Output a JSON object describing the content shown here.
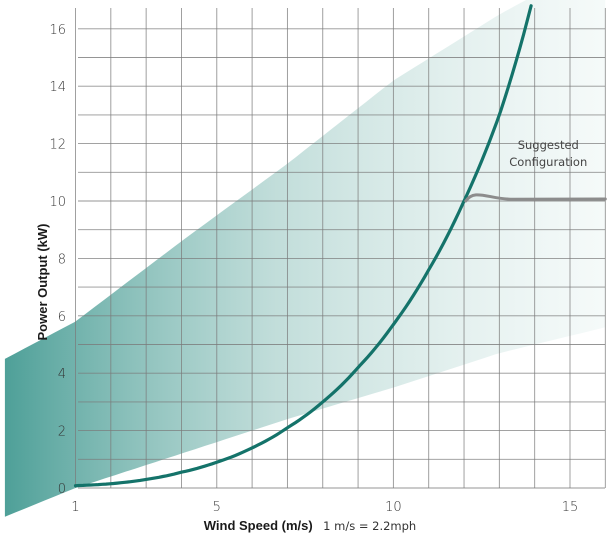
{
  "chart_data": {
    "type": "line",
    "title": "",
    "xlabel": "Wind Speed (m/s)",
    "xlabel_note": "1 m/s = 2.2mph",
    "ylabel": "Power Output (kW)",
    "xlim": [
      1,
      16
    ],
    "ylim": [
      0,
      16.8
    ],
    "x_ticks": [
      1,
      5,
      10,
      15
    ],
    "x_tick_labels": [
      "1",
      "5",
      "10",
      "15"
    ],
    "y_ticks": [
      0,
      2,
      4,
      6,
      8,
      10,
      12,
      14,
      16
    ],
    "y_tick_labels": [
      "0",
      "2",
      "4",
      "6",
      "8",
      "10",
      "12",
      "14",
      "16"
    ],
    "grid": true,
    "series": [
      {
        "color": "#14736a",
        "x": [
          1,
          2,
          3,
          4,
          5,
          6,
          7,
          8,
          9,
          10,
          11,
          12,
          13,
          13.9
        ],
        "y": [
          0.08,
          0.15,
          0.3,
          0.55,
          0.9,
          1.4,
          2.1,
          3.0,
          4.2,
          5.7,
          7.6,
          10.0,
          13.0,
          16.8
        ]
      },
      {
        "name": "Suggested Configuration",
        "color": "#8c8c8c",
        "x": [
          12.05,
          12.3,
          12.6,
          13.0,
          13.5,
          14,
          15,
          16
        ],
        "y": [
          10.0,
          10.55,
          10.0,
          10.04,
          10.05,
          10.06,
          10.07,
          10.07
        ]
      }
    ],
    "band": {
      "color": "#8fc2bc",
      "lower": {
        "x": [
          -1,
          1,
          4,
          7,
          10,
          13,
          16
        ],
        "y": [
          -1.0,
          0.0,
          1.2,
          2.4,
          3.5,
          4.7,
          5.6
        ]
      },
      "upper": {
        "x": [
          -1,
          1,
          4,
          7,
          10,
          13,
          16
        ],
        "y": [
          4.5,
          5.8,
          8.6,
          11.3,
          14.2,
          16.5,
          18.5
        ]
      }
    },
    "annotations": [
      {
        "text_lines": [
          "Suggested",
          "Configuration"
        ],
        "x": 14.3,
        "y": 10.8
      }
    ]
  }
}
